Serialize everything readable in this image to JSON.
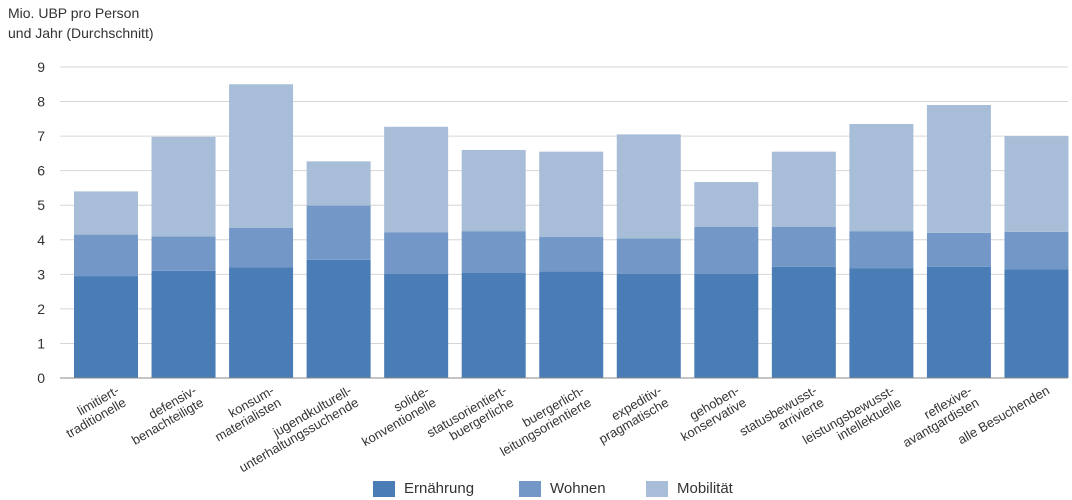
{
  "chart_data": {
    "type": "bar",
    "stacked": true,
    "ylabel_line1": "Mio. UBP pro Person",
    "ylabel_line2": "und Jahr (Durchschnitt)",
    "ylim": [
      0,
      9
    ],
    "yticks": [
      "0",
      "1",
      "2",
      "3",
      "4",
      "5",
      "6",
      "7",
      "8",
      "9"
    ],
    "grid": true,
    "legend_position": "bottom",
    "categories": [
      [
        "limitiert-",
        "traditionelle"
      ],
      [
        "defensiv-",
        "benachteiligte"
      ],
      [
        "konsum-",
        "materialisten"
      ],
      [
        "jugendkulturell-",
        "unterhaltungssuchende"
      ],
      [
        "solide-",
        "konventionelle"
      ],
      [
        "statusorientiert-",
        "buergerliche"
      ],
      [
        "buergerlich-",
        "leitungsorientierte"
      ],
      [
        "expeditiv-",
        "pragmatische"
      ],
      [
        "gehoben-",
        "konservative"
      ],
      [
        "statusbewusst-",
        "arrivierte"
      ],
      [
        "leistungsbewusst-",
        "intellektuelle"
      ],
      [
        "reflexive-",
        "avantgardisten"
      ],
      [
        "alle Besuchenden"
      ]
    ],
    "series": [
      {
        "name": "Ernährung",
        "color": "#4a7db5",
        "values": [
          2.95,
          3.1,
          3.2,
          3.42,
          3.02,
          3.05,
          3.08,
          3.02,
          3.02,
          3.22,
          3.18,
          3.22,
          3.15
        ]
      },
      {
        "name": "Wohnen",
        "color": "#7398c8",
        "values": [
          1.2,
          1.0,
          1.15,
          1.57,
          1.2,
          1.2,
          1.0,
          1.02,
          1.35,
          1.15,
          1.07,
          0.98,
          1.08
        ]
      },
      {
        "name": "Mobilität",
        "color": "#a8bdd7",
        "values": [
          1.25,
          2.88,
          4.15,
          1.28,
          3.05,
          2.35,
          2.47,
          3.01,
          1.3,
          2.18,
          3.1,
          3.7,
          2.77
        ]
      }
    ]
  }
}
